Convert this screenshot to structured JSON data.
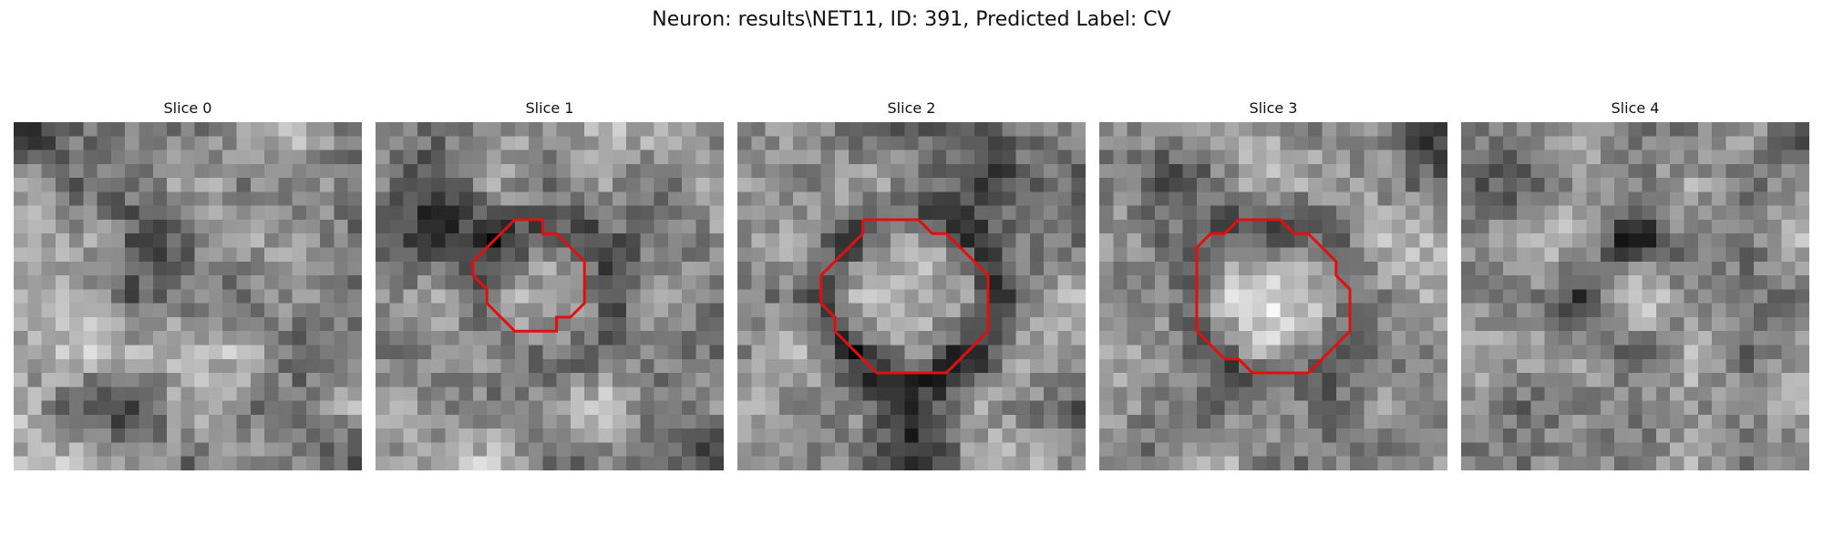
{
  "figure": {
    "title": "Neuron: results\\NET11, ID: 391, Predicted Label: CV"
  },
  "slices": [
    {
      "title": "Slice 0",
      "has_roi": false
    },
    {
      "title": "Slice 1",
      "has_roi": true
    },
    {
      "title": "Slice 2",
      "has_roi": true
    },
    {
      "title": "Slice 3",
      "has_roi": true
    },
    {
      "title": "Slice 4",
      "has_roi": false
    }
  ],
  "colors": {
    "roi_outline": "#e01010",
    "background": "#ffffff",
    "text": "#111111"
  },
  "image_style": {
    "colormap": "grayscale",
    "grid_size": 25
  }
}
